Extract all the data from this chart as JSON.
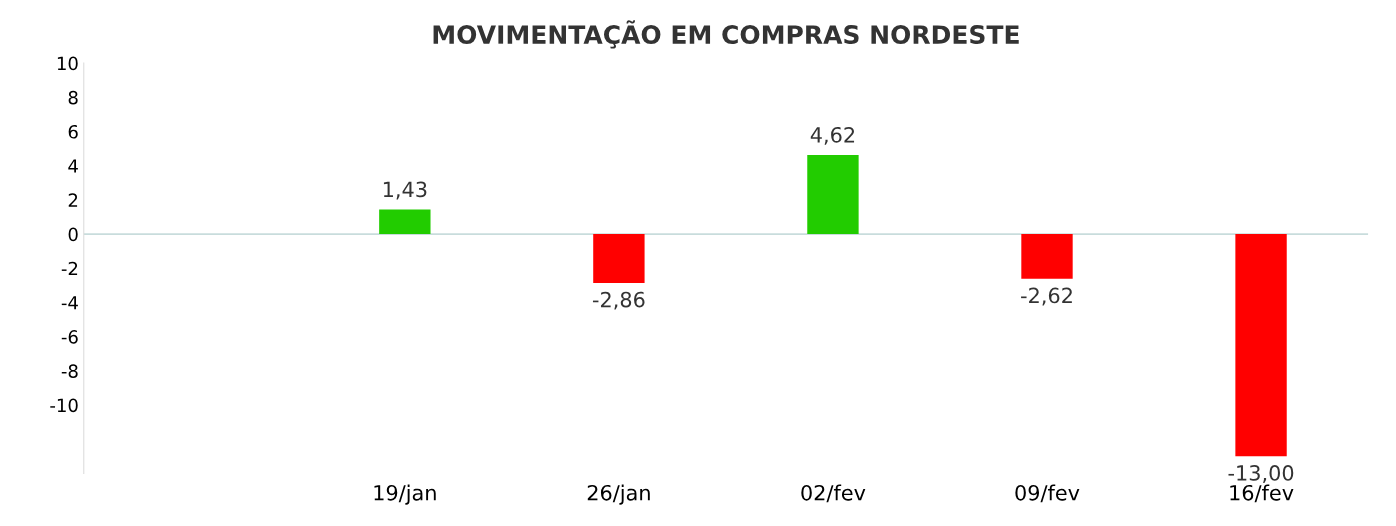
{
  "chart_data": {
    "type": "bar",
    "title": "MOVIMENTAÇÃO EM COMPRAS NORDESTE",
    "categories": [
      null,
      "19/jan",
      "26/jan",
      "02/fev",
      "09/fev",
      "16/fev"
    ],
    "values": [
      null,
      1.43,
      -2.86,
      4.62,
      -2.62,
      -13.0
    ],
    "colors": [
      "#22cc00",
      "#22cc00",
      "#ff0000",
      "#22cc00",
      "#ff0000",
      "#ff0000"
    ],
    "value_labels": [
      null,
      "1,43",
      "-2,86",
      "4,62",
      "-2,62",
      "-13,00"
    ],
    "ref_lines": [
      {
        "axis": "y",
        "value": 0,
        "color": "#c8dcdc"
      }
    ],
    "ylim": [
      -14,
      10
    ],
    "yticks": [
      -10,
      -8,
      -6,
      -4,
      -2,
      0,
      2,
      4,
      6,
      8,
      10
    ],
    "grid": false
  }
}
